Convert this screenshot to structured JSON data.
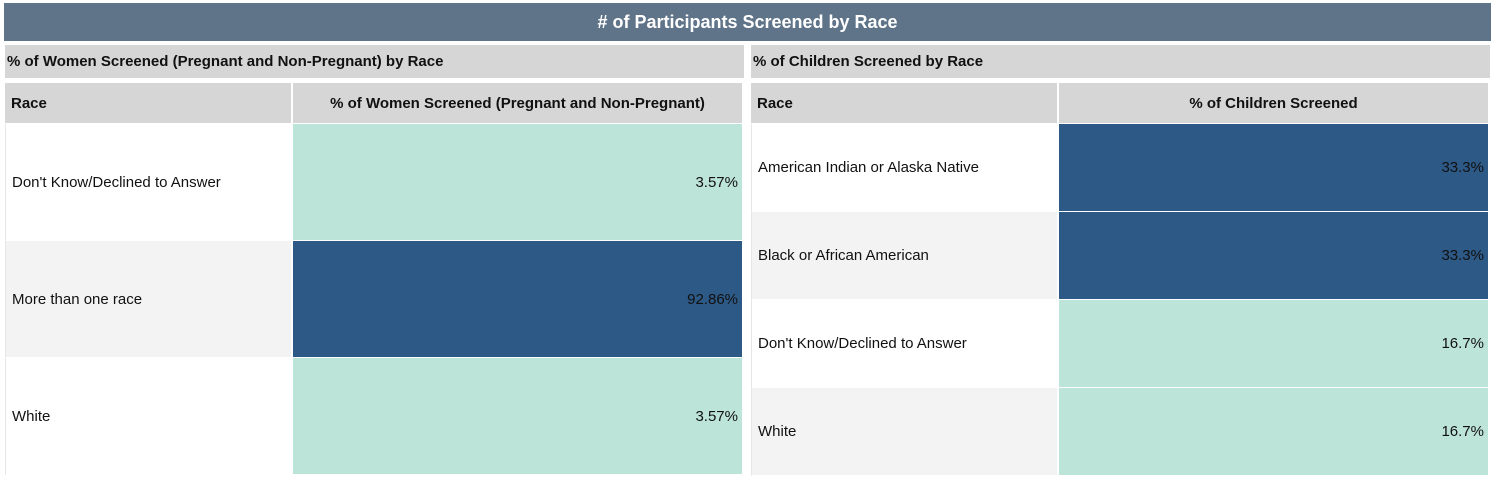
{
  "banner_title": "# of Participants Screened by Race",
  "colors": {
    "high": "#2d5986",
    "low": "#bde4d9"
  },
  "chart_data": [
    {
      "type": "table",
      "title": "% of Women Screened (Pregnant and Non-Pregnant) by Race",
      "columns": [
        "Race",
        "% of Women Screened (Pregnant and Non-Pregnant)"
      ],
      "categories": [
        "Don't Know/Declined to Answer",
        "More than one race",
        "White"
      ],
      "values": [
        3.57,
        92.86,
        3.57
      ],
      "value_labels": [
        "3.57%",
        "92.86%",
        "3.57%"
      ]
    },
    {
      "type": "table",
      "title": "% of Children Screened by Race",
      "columns": [
        "Race",
        "% of Children Screened"
      ],
      "categories": [
        "American Indian or Alaska Native",
        "Black or African American",
        "Don't Know/Declined to Answer",
        "White"
      ],
      "values": [
        33.3,
        33.3,
        16.7,
        16.7
      ],
      "value_labels": [
        "33.3%",
        "33.3%",
        "16.7%",
        "16.7%"
      ]
    }
  ]
}
